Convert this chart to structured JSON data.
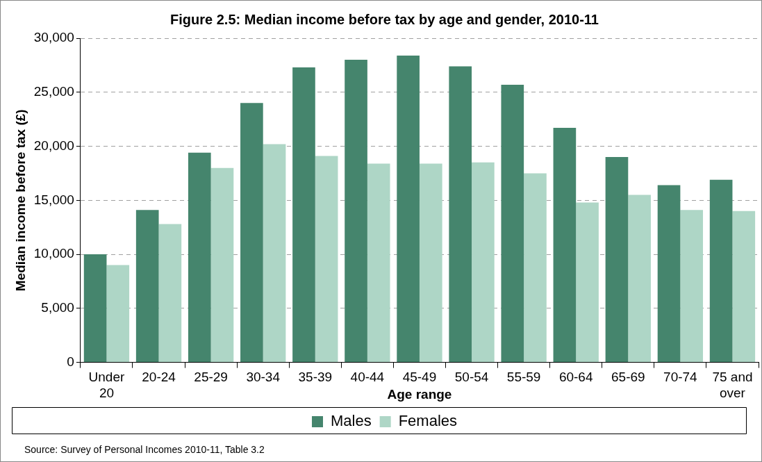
{
  "chart_data": {
    "type": "bar",
    "title": "Figure 2.5: Median income before tax by age and gender, 2010-11",
    "xlabel": "Age range",
    "ylabel": "Median income before tax (£)",
    "categories": [
      "Under 20",
      "20-24",
      "25-29",
      "30-34",
      "35-39",
      "40-44",
      "45-49",
      "50-54",
      "55-59",
      "60-64",
      "65-69",
      "70-74",
      "75 and over"
    ],
    "series": [
      {
        "name": "Males",
        "color": "#45856d",
        "values": [
          10000,
          14100,
          19400,
          24000,
          27300,
          28000,
          28400,
          27400,
          25700,
          21700,
          19000,
          16400,
          16900
        ]
      },
      {
        "name": "Females",
        "color": "#aed6c6",
        "values": [
          9000,
          12800,
          18000,
          20200,
          19100,
          18400,
          18400,
          18500,
          17500,
          14800,
          15500,
          14100,
          14000
        ]
      }
    ],
    "ylim": [
      0,
      30000
    ],
    "yticks": [
      {
        "value": 0,
        "label": "0"
      },
      {
        "value": 5000,
        "label": "5,000"
      },
      {
        "value": 10000,
        "label": "10,000"
      },
      {
        "value": 15000,
        "label": "15,000"
      },
      {
        "value": 20000,
        "label": "20,000"
      },
      {
        "value": 25000,
        "label": "25,000"
      },
      {
        "value": 30000,
        "label": "30,000"
      }
    ],
    "grid": "y",
    "legend": "bottom",
    "annotations": [
      "Source: Survey of Personal Incomes 2010-11, Table 3.2"
    ]
  }
}
